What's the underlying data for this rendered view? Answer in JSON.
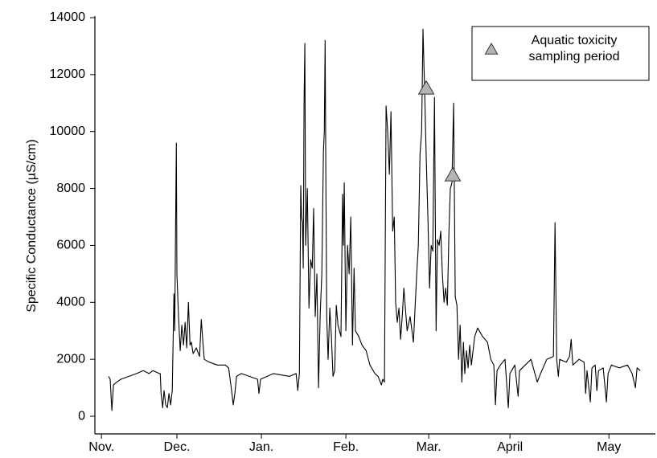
{
  "chart_data": {
    "type": "line",
    "y_label": "Specific Conductance (µS/cm)",
    "xlim": [
      -2.4,
      202.6
    ],
    "xticks": [
      {
        "value": 0,
        "label": "Nov."
      },
      {
        "value": 27.6,
        "label": "Dec."
      },
      {
        "value": 58.5,
        "label": "Jan."
      },
      {
        "value": 89.4,
        "label": "Feb."
      },
      {
        "value": 119.7,
        "label": "Mar."
      },
      {
        "value": 149.4,
        "label": "April"
      },
      {
        "value": 185.6,
        "label": "May"
      }
    ],
    "ylim": [
      -620,
      14000
    ],
    "yticks": [
      0,
      2000,
      4000,
      6000,
      8000,
      10000,
      12000,
      14000
    ],
    "x": [
      2.6,
      3.2,
      3.8,
      4.4,
      5.6,
      7.1,
      10.0,
      12.9,
      15.3,
      17.4,
      18.8,
      21.2,
      21.5,
      21.8,
      22.4,
      22.9,
      23.5,
      24.1,
      24.7,
      25.3,
      25.9,
      26.2,
      26.5,
      26.8,
      27.1,
      27.4,
      27.6,
      28.2,
      28.8,
      29.4,
      30.0,
      30.6,
      31.2,
      31.8,
      32.4,
      32.9,
      33.5,
      34.7,
      35.9,
      36.5,
      37.1,
      37.6,
      39.4,
      42.4,
      45.3,
      46.5,
      47.6,
      48.2,
      48.8,
      49.4,
      51.2,
      57.1,
      57.6,
      58.2,
      62.9,
      68.8,
      71.2,
      71.8,
      72.4,
      72.9,
      73.2,
      73.5,
      73.8,
      74.1,
      74.4,
      74.7,
      75.3,
      75.9,
      76.5,
      77.1,
      77.6,
      78.2,
      78.8,
      79.4,
      80.0,
      80.6,
      81.2,
      81.5,
      81.8,
      82.1,
      82.4,
      82.9,
      83.5,
      84.1,
      84.7,
      85.3,
      85.9,
      86.5,
      87.6,
      88.2,
      88.5,
      88.8,
      89.4,
      90.0,
      90.6,
      91.2,
      91.8,
      92.4,
      92.9,
      94.1,
      95.3,
      96.8,
      98.2,
      100.0,
      101.2,
      102.4,
      102.9,
      103.5,
      104.1,
      104.7,
      105.3,
      105.9,
      106.5,
      107.1,
      107.6,
      108.2,
      108.8,
      109.4,
      110.0,
      110.6,
      111.8,
      112.9,
      114.1,
      115.3,
      115.9,
      116.5,
      117.1,
      117.6,
      118.2,
      118.8,
      119.4,
      120.0,
      120.6,
      121.2,
      121.8,
      122.4,
      122.9,
      123.5,
      124.1,
      124.7,
      125.3,
      125.9,
      126.5,
      127.1,
      127.6,
      128.2,
      128.8,
      129.4,
      130.0,
      130.6,
      131.2,
      131.8,
      132.4,
      132.9,
      133.5,
      134.1,
      134.7,
      135.3,
      136.5,
      137.6,
      139.4,
      141.2,
      142.4,
      143.5,
      144.1,
      144.7,
      145.9,
      147.6,
      148.8,
      149.4,
      151.2,
      152.4,
      152.9,
      157.1,
      159.4,
      160.6,
      162.9,
      165.3,
      165.9,
      166.5,
      167.1,
      167.6,
      170.0,
      171.2,
      171.8,
      172.4,
      174.7,
      176.5,
      177.1,
      177.6,
      178.8,
      179.4,
      180.6,
      181.2,
      181.8,
      183.5,
      184.7,
      185.3,
      186.5,
      189.4,
      192.4,
      194.1,
      195.3,
      195.9,
      197.1
    ],
    "series": [
      {
        "color": "#000000",
        "values": [
          1400,
          1300,
          200,
          1100,
          1200,
          1300,
          1400,
          1500,
          1600,
          1500,
          1600,
          1500,
          1500,
          800,
          300,
          900,
          400,
          300,
          800,
          400,
          900,
          2500,
          4300,
          3000,
          6500,
          9600,
          5000,
          3500,
          2300,
          3200,
          2500,
          3300,
          2400,
          4000,
          2500,
          2600,
          2200,
          2400,
          2100,
          3400,
          2600,
          2000,
          1900,
          1800,
          1800,
          1700,
          900,
          400,
          800,
          1400,
          1500,
          1300,
          800,
          1300,
          1500,
          1400,
          1500,
          900,
          1500,
          8100,
          7000,
          6800,
          5200,
          11000,
          13100,
          6000,
          8000,
          3800,
          5500,
          5200,
          7300,
          3500,
          5000,
          1000,
          3600,
          5000,
          9300,
          10000,
          13200,
          8000,
          3500,
          2000,
          3800,
          2800,
          1400,
          1600,
          3900,
          3200,
          2800,
          7800,
          6000,
          8200,
          3000,
          6000,
          5000,
          7000,
          2500,
          5200,
          3000,
          2800,
          2500,
          2300,
          1800,
          1500,
          1400,
          1100,
          1300,
          1200,
          10900,
          10000,
          8500,
          10700,
          6500,
          7000,
          4000,
          3300,
          3800,
          2700,
          3500,
          4500,
          3000,
          3500,
          2600,
          5000,
          6000,
          9200,
          10000,
          13600,
          11500,
          9000,
          7000,
          4500,
          6000,
          5800,
          11200,
          3000,
          6200,
          6000,
          6500,
          5000,
          4000,
          4500,
          3900,
          6500,
          8000,
          8200,
          11000,
          4200,
          3900,
          2000,
          3200,
          1200,
          2600,
          1500,
          2300,
          1700,
          2500,
          1800,
          2800,
          3100,
          2800,
          2600,
          2000,
          1800,
          400,
          1600,
          1800,
          2000,
          300,
          1500,
          1800,
          700,
          1600,
          2000,
          1200,
          1500,
          2000,
          2100,
          6800,
          2000,
          1400,
          2000,
          1900,
          2100,
          2700,
          1800,
          2000,
          1900,
          800,
          1600,
          500,
          1700,
          1800,
          900,
          1600,
          1700,
          500,
          1500,
          1800,
          1700,
          1800,
          1500,
          1000,
          1700,
          1600
        ]
      }
    ],
    "markers": {
      "name": "Aquatic toxicity sampling period",
      "color": "#b4b4b4",
      "x": [
        118.8,
        128.5
      ],
      "values": [
        11500,
        8450
      ]
    },
    "legend": "upper right"
  }
}
